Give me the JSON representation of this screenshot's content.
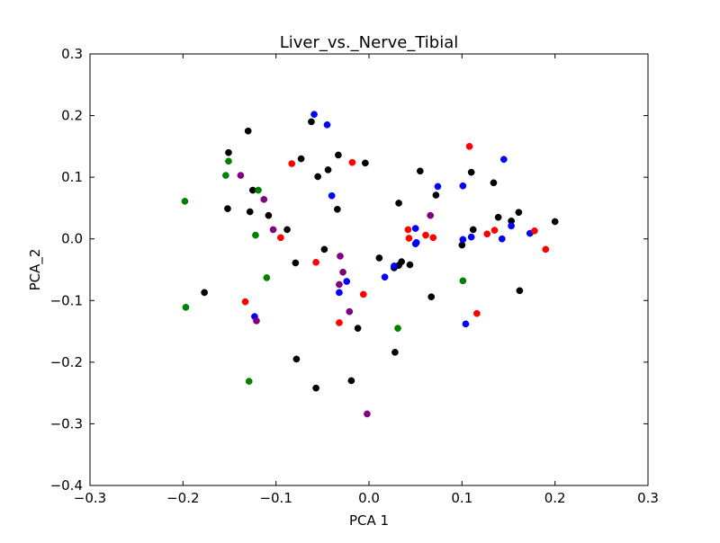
{
  "chart_data": {
    "type": "scatter",
    "title": "Liver_vs._Nerve_Tibial",
    "xlabel": "PCA 1",
    "ylabel": "PCA_2",
    "xlim": [
      -0.3,
      0.3
    ],
    "ylim": [
      -0.4,
      0.3
    ],
    "xticks": [
      -0.3,
      -0.2,
      -0.1,
      0.0,
      0.1,
      0.2,
      0.3
    ],
    "xtick_labels": [
      "−0.3",
      "−0.2",
      "−0.1",
      "0.0",
      "0.1",
      "0.2",
      "0.3"
    ],
    "yticks": [
      0.3,
      0.2,
      0.1,
      0.0,
      -0.1,
      -0.2,
      -0.3,
      -0.4
    ],
    "ytick_labels": [
      "0.3",
      "0.2",
      "0.1",
      "0.0",
      "−0.1",
      "−0.2",
      "−0.3",
      "−0.4"
    ],
    "grid": false,
    "legend": "none",
    "series": [
      {
        "color": "#000000",
        "points": [
          [
            -0.151,
            0.14
          ],
          [
            -0.13,
            0.175
          ],
          [
            -0.062,
            0.19
          ],
          [
            -0.073,
            0.13
          ],
          [
            -0.033,
            0.136
          ],
          [
            -0.044,
            0.112
          ],
          [
            -0.055,
            0.101
          ],
          [
            -0.004,
            0.123
          ],
          [
            0.055,
            0.11
          ],
          [
            0.11,
            0.108
          ],
          [
            0.134,
            0.091
          ],
          [
            -0.125,
            0.079
          ],
          [
            -0.152,
            0.049
          ],
          [
            -0.128,
            0.044
          ],
          [
            -0.108,
            0.038
          ],
          [
            -0.088,
            0.015
          ],
          [
            -0.034,
            0.048
          ],
          [
            0.032,
            0.058
          ],
          [
            0.072,
            0.071
          ],
          [
            0.112,
            0.015
          ],
          [
            0.139,
            0.035
          ],
          [
            0.153,
            0.029
          ],
          [
            0.161,
            0.043
          ],
          [
            0.2,
            0.028
          ],
          [
            0.1,
            -0.01
          ],
          [
            -0.048,
            -0.017
          ],
          [
            -0.079,
            -0.039
          ],
          [
            0.011,
            -0.031
          ],
          [
            0.027,
            -0.047
          ],
          [
            0.032,
            -0.043
          ],
          [
            0.035,
            -0.037
          ],
          [
            0.044,
            -0.042
          ],
          [
            0.067,
            -0.094
          ],
          [
            0.162,
            -0.084
          ],
          [
            -0.177,
            -0.087
          ],
          [
            -0.012,
            -0.145
          ],
          [
            0.028,
            -0.184
          ],
          [
            -0.078,
            -0.195
          ],
          [
            -0.019,
            -0.23
          ],
          [
            -0.057,
            -0.242
          ]
        ]
      },
      {
        "color": "#0000ff",
        "points": [
          [
            -0.059,
            0.202
          ],
          [
            -0.045,
            0.185
          ],
          [
            -0.04,
            0.07
          ],
          [
            0.074,
            0.085
          ],
          [
            0.101,
            0.086
          ],
          [
            0.145,
            0.129
          ],
          [
            0.153,
            0.021
          ],
          [
            0.173,
            0.009
          ],
          [
            0.11,
            0.003
          ],
          [
            0.143,
            0.0
          ],
          [
            0.101,
            -0.001
          ],
          [
            0.05,
            0.017
          ],
          [
            0.051,
            -0.006
          ],
          [
            0.05,
            -0.008
          ],
          [
            0.027,
            -0.044
          ],
          [
            0.017,
            -0.062
          ],
          [
            -0.024,
            -0.069
          ],
          [
            -0.032,
            -0.087
          ],
          [
            -0.123,
            -0.126
          ],
          [
            0.104,
            -0.138
          ]
        ]
      },
      {
        "color": "#ff0000",
        "points": [
          [
            0.108,
            0.15
          ],
          [
            -0.018,
            0.124
          ],
          [
            -0.083,
            0.122
          ],
          [
            0.042,
            0.015
          ],
          [
            0.043,
            0.001
          ],
          [
            0.061,
            0.006
          ],
          [
            0.069,
            0.002
          ],
          [
            0.127,
            0.008
          ],
          [
            0.135,
            0.014
          ],
          [
            0.178,
            0.013
          ],
          [
            0.19,
            -0.017
          ],
          [
            -0.095,
            0.002
          ],
          [
            -0.057,
            -0.038
          ],
          [
            -0.006,
            -0.09
          ],
          [
            -0.133,
            -0.102
          ],
          [
            -0.032,
            -0.136
          ],
          [
            0.116,
            -0.121
          ]
        ]
      },
      {
        "color": "#008000",
        "points": [
          [
            -0.151,
            0.126
          ],
          [
            -0.154,
            0.103
          ],
          [
            -0.119,
            0.079
          ],
          [
            -0.198,
            0.061
          ],
          [
            -0.122,
            0.006
          ],
          [
            -0.11,
            -0.063
          ],
          [
            0.101,
            -0.068
          ],
          [
            -0.197,
            -0.111
          ],
          [
            0.031,
            -0.145
          ],
          [
            -0.129,
            -0.231
          ]
        ]
      },
      {
        "color": "#800080",
        "points": [
          [
            -0.138,
            0.103
          ],
          [
            -0.113,
            0.064
          ],
          [
            -0.103,
            0.015
          ],
          [
            0.066,
            0.038
          ],
          [
            -0.031,
            -0.028
          ],
          [
            -0.028,
            -0.054
          ],
          [
            -0.032,
            -0.074
          ],
          [
            -0.021,
            -0.118
          ],
          [
            -0.121,
            -0.133
          ],
          [
            -0.002,
            -0.284
          ]
        ]
      }
    ]
  }
}
